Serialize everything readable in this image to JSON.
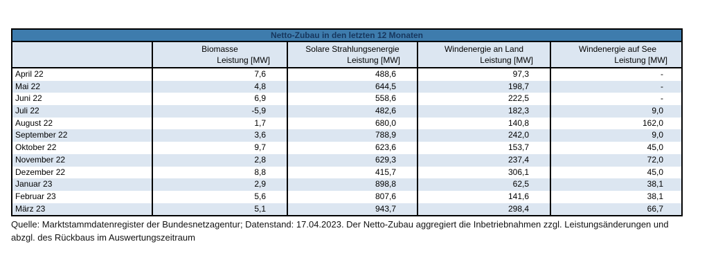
{
  "title": "Netto-Zubau in den letzten 12 Monaten",
  "table": {
    "header": {
      "columns": [
        {
          "name": "Biomasse",
          "unit": "Leistung [MW]"
        },
        {
          "name": "Solare Strahlungsenergie",
          "unit": "Leistung [MW]"
        },
        {
          "name": "Windenergie an Land",
          "unit": "Leistung [MW]"
        },
        {
          "name": "Windenergie auf See",
          "unit": "Leistung [MW]"
        }
      ]
    },
    "rows": [
      {
        "month": "April 22",
        "values": [
          "7,6",
          "488,6",
          "97,3",
          "-"
        ]
      },
      {
        "month": "Mai 22",
        "values": [
          "4,8",
          "644,5",
          "198,7",
          "-"
        ]
      },
      {
        "month": "Juni 22",
        "values": [
          "6,9",
          "558,6",
          "222,5",
          "-"
        ]
      },
      {
        "month": "Juli 22",
        "values": [
          "-5,9",
          "482,6",
          "182,3",
          "9,0"
        ]
      },
      {
        "month": "August 22",
        "values": [
          "1,7",
          "680,0",
          "140,8",
          "162,0"
        ]
      },
      {
        "month": "September 22",
        "values": [
          "3,6",
          "788,9",
          "242,0",
          "9,0"
        ]
      },
      {
        "month": "Oktober 22",
        "values": [
          "9,7",
          "623,6",
          "153,7",
          "45,0"
        ]
      },
      {
        "month": "November 22",
        "values": [
          "2,8",
          "629,3",
          "237,4",
          "72,0"
        ]
      },
      {
        "month": "Dezember 22",
        "values": [
          "8,8",
          "415,7",
          "306,1",
          "45,0"
        ]
      },
      {
        "month": "Januar 23",
        "values": [
          "2,9",
          "898,8",
          "62,5",
          "38,1"
        ]
      },
      {
        "month": "Februar 23",
        "values": [
          "5,6",
          "807,6",
          "141,6",
          "38,1"
        ]
      },
      {
        "month": "März 23",
        "values": [
          "5,1",
          "943,7",
          "298,4",
          "66,7"
        ]
      }
    ]
  },
  "footer": "Quelle: Marktstammdatenregister der Bundesnetzagentur; Datenstand: 17.04.2023. Der Netto-Zubau aggregiert die Inbetriebnahmen zzgl. Leistungsänderungen und abzgl. des Rückbaus im Auswertungszeitraum",
  "colors": {
    "title_band_bg": "#3E7CAD",
    "title_text": "#17375E",
    "header_bg": "#DCE6F1",
    "banded_row_bg": "#DCE6F1",
    "border": "#000000"
  },
  "chart_data": {
    "type": "table",
    "title": "Netto-Zubau in den letzten 12 Monaten",
    "unit": "Leistung [MW]",
    "categories": [
      "April 22",
      "Mai 22",
      "Juni 22",
      "Juli 22",
      "August 22",
      "September 22",
      "Oktober 22",
      "November 22",
      "Dezember 22",
      "Januar 23",
      "Februar 23",
      "März 23"
    ],
    "series": [
      {
        "name": "Biomasse Leistung [MW]",
        "values": [
          7.6,
          4.8,
          6.9,
          -5.9,
          1.7,
          3.6,
          9.7,
          2.8,
          8.8,
          2.9,
          5.6,
          5.1
        ]
      },
      {
        "name": "Solare Strahlungsenergie Leistung [MW]",
        "values": [
          488.6,
          644.5,
          558.6,
          482.6,
          680.0,
          788.9,
          623.6,
          629.3,
          415.7,
          898.8,
          807.6,
          943.7
        ]
      },
      {
        "name": "Windenergie an Land Leistung [MW]",
        "values": [
          97.3,
          198.7,
          222.5,
          182.3,
          140.8,
          242.0,
          153.7,
          237.4,
          306.1,
          62.5,
          141.6,
          298.4
        ]
      },
      {
        "name": "Windenergie auf See Leistung [MW]",
        "values": [
          null,
          null,
          null,
          9.0,
          162.0,
          9.0,
          45.0,
          72.0,
          45.0,
          38.1,
          38.1,
          66.7
        ]
      }
    ],
    "missing_value_display": "-",
    "source_note": "Quelle: Marktstammdatenregister der Bundesnetzagentur; Datenstand: 17.04.2023. Der Netto-Zubau aggregiert die Inbetriebnahmen zzgl. Leistungsänderungen und abzgl. des Rückbaus im Auswertungszeitraum"
  }
}
